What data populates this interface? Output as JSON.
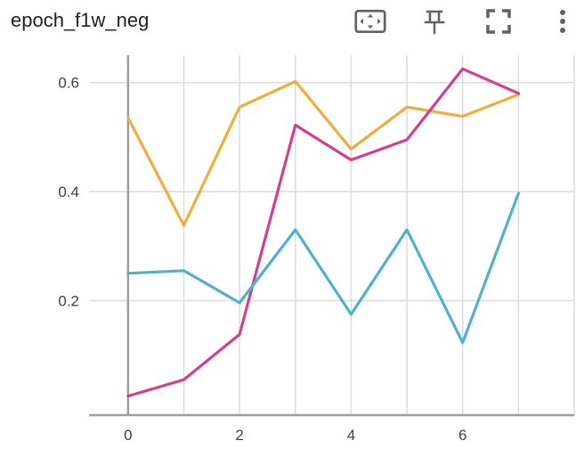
{
  "card": {
    "title": "epoch_f1w_neg",
    "toolbar": [
      {
        "name": "fit-domain-button",
        "icon": "fit-to-data-icon"
      },
      {
        "name": "pin-button",
        "icon": "pin-icon"
      },
      {
        "name": "fullscreen-button",
        "icon": "fullscreen-icon"
      },
      {
        "name": "more-options-button",
        "icon": "more-vert-icon"
      }
    ]
  },
  "chart_data": {
    "type": "line",
    "title": "epoch_f1w_neg",
    "xlabel": "",
    "ylabel": "",
    "xlim": [
      -0.7,
      8
    ],
    "ylim": [
      -0.01,
      0.65
    ],
    "x_ticks": [
      "0",
      "2",
      "4",
      "6"
    ],
    "y_ticks": [
      "0.2",
      "0.4",
      "0.6"
    ],
    "grid": true,
    "series": [
      {
        "color": "#F0AD3C",
        "x": [
          0,
          1,
          2,
          3,
          4,
          5,
          6,
          7
        ],
        "values": [
          0.535,
          0.338,
          0.555,
          0.602,
          0.478,
          0.555,
          0.538,
          0.578
        ]
      },
      {
        "color": "#D33F8F",
        "x": [
          0,
          1,
          2,
          3,
          4,
          5,
          6,
          7
        ],
        "values": [
          0.025,
          0.055,
          0.138,
          0.522,
          0.458,
          0.495,
          0.625,
          0.58
        ]
      },
      {
        "color": "#4EB3C9",
        "x": [
          0,
          1,
          2,
          3,
          4,
          5,
          6,
          7
        ],
        "values": [
          0.25,
          0.255,
          0.196,
          0.33,
          0.175,
          0.33,
          0.123,
          0.397
        ]
      }
    ]
  }
}
